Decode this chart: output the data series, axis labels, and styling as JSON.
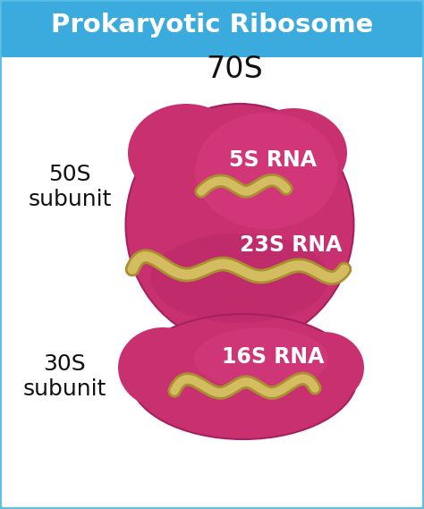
{
  "title": "Prokaryotic Ribosome",
  "title_bg": "#3aabdc",
  "title_color": "#ffffff",
  "bg_color": "#ffffff",
  "border_color": "#5bbde8",
  "label_70S": "70S",
  "label_50S": "50S\nsubunit",
  "label_30S": "30S\nsubunit",
  "label_5S": "5S RNA",
  "label_23S": "23S RNA",
  "label_16S": "16S RNA",
  "ribosome_color": "#c93070",
  "ribosome_dark": "#a52060",
  "ribosome_light": "#e04488",
  "rna_color": "#d4bc60",
  "rna_outline": "#a89030",
  "figsize": [
    4.74,
    5.69
  ],
  "dpi": 100
}
